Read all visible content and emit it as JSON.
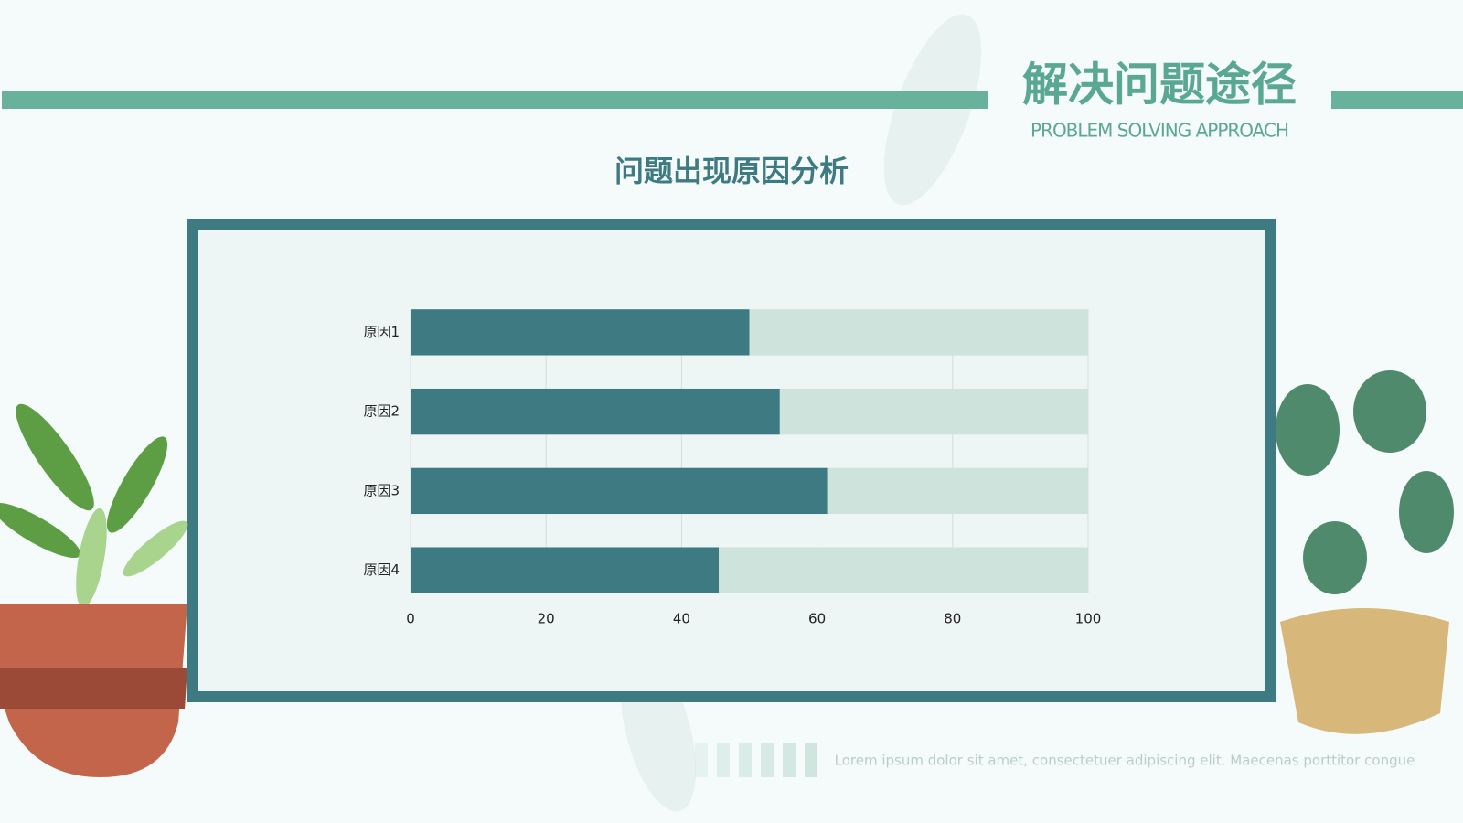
{
  "header": {
    "title": "解决问题途径",
    "subtitle": "PROBLEM SOLVING APPROACH"
  },
  "chart_data": {
    "type": "bar",
    "orientation": "horizontal",
    "stacked": true,
    "title": "问题出现原因分析",
    "categories": [
      "原因1",
      "原因2",
      "原因3",
      "原因4"
    ],
    "series": [
      {
        "color": "#3e7a82",
        "values": [
          50,
          54.5,
          61.5,
          45.5
        ]
      },
      {
        "color": "#cde3dc",
        "values": [
          50,
          45.5,
          38.5,
          54.5
        ]
      }
    ],
    "xlim": [
      0,
      100
    ],
    "xticks": [
      0,
      20,
      40,
      60,
      80,
      100
    ],
    "grid": true
  },
  "footer": {
    "text": "Lorem ipsum dolor sit amet, consectetuer adipiscing elit. Maecenas porttitor congue"
  }
}
